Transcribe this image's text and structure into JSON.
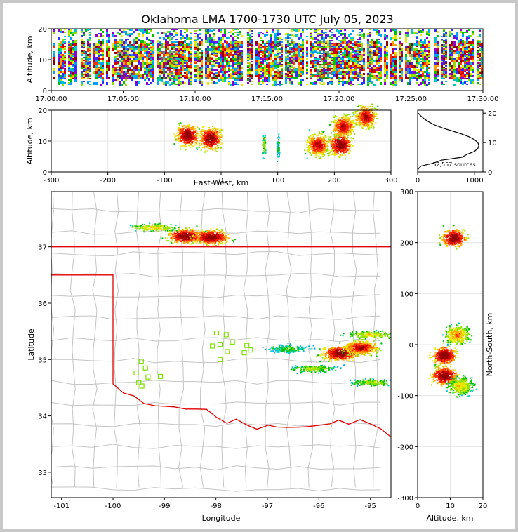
{
  "title": "Oklahoma LMA 1700-1730 UTC July 05, 2023",
  "source_count_label": "52,557 sources",
  "colors": {
    "background": "#ffffff",
    "frame": "#c8c8c8",
    "state_border": "#e00000",
    "county_lines": "#c4c4c4",
    "station": "#7fe000",
    "profile": "#000000"
  },
  "chart_data": [
    {
      "id": "time-height",
      "type": "heatmap",
      "xlabel": "",
      "ylabel": "Altitude, km",
      "x_ticks": [
        "17:00:00",
        "17:05:00",
        "17:10:00",
        "17:15:00",
        "17:20:00",
        "17:25:00",
        "17:30:00"
      ],
      "xlim": [
        "17:00:00",
        "17:30:00"
      ],
      "y_ticks": [
        0,
        10,
        20
      ],
      "ylim": [
        0,
        20
      ],
      "altitude_band_km": [
        2,
        20
      ],
      "core_altitude_km": [
        4,
        16
      ],
      "grid": false
    },
    {
      "id": "east-west-altitude",
      "type": "heatmap",
      "xlabel": "East-West, km",
      "ylabel": "Altitude, km",
      "x_ticks": [
        -300,
        -200,
        -100,
        0,
        100,
        200,
        300
      ],
      "xlim": [
        -300,
        300
      ],
      "y_ticks": [
        0,
        10,
        20
      ],
      "ylim": [
        0,
        20
      ],
      "grid": true,
      "clusters": [
        {
          "x": -60,
          "z": 12,
          "intensity": 1.0
        },
        {
          "x": -20,
          "z": 11,
          "intensity": 1.0
        },
        {
          "x": 75,
          "z": 9,
          "intensity": 0.5
        },
        {
          "x": 100,
          "z": 8,
          "intensity": 0.4
        },
        {
          "x": 170,
          "z": 9,
          "intensity": 0.9
        },
        {
          "x": 210,
          "z": 9,
          "intensity": 1.0
        },
        {
          "x": 215,
          "z": 15,
          "intensity": 0.9
        },
        {
          "x": 255,
          "z": 18,
          "intensity": 0.9
        }
      ]
    },
    {
      "id": "altitude-histogram",
      "type": "line",
      "xlabel": "",
      "ylabel": "",
      "x_ticks": [
        0,
        1000
      ],
      "xlim": [
        0,
        1150
      ],
      "y_ticks": [
        0,
        10,
        20
      ],
      "ylim": [
        0,
        21
      ],
      "series": [
        {
          "altitude_km": [
            0,
            1,
            2,
            3,
            4,
            5,
            6,
            7,
            8,
            9,
            10,
            11,
            12,
            13,
            14,
            15,
            16,
            17,
            18,
            19,
            20
          ],
          "sources": [
            0,
            10,
            60,
            280,
            420,
            780,
            870,
            1000,
            1060,
            1080,
            1060,
            1000,
            900,
            760,
            600,
            430,
            300,
            200,
            120,
            60,
            10
          ]
        }
      ]
    },
    {
      "id": "plan-view",
      "type": "scatter",
      "xlabel": "Longitude",
      "ylabel": "Latitude",
      "x_ticks": [
        -101,
        -100,
        -99,
        -98,
        -97,
        -96,
        -95
      ],
      "xlim": [
        -101.2,
        -94.6
      ],
      "y_ticks": [
        33,
        34,
        35,
        36,
        37
      ],
      "ylim": [
        32.55,
        37.98
      ],
      "stations": [
        {
          "lon": -99.45,
          "lat": 34.97
        },
        {
          "lon": -99.37,
          "lat": 34.85
        },
        {
          "lon": -99.55,
          "lat": 34.76
        },
        {
          "lon": -99.32,
          "lat": 34.69
        },
        {
          "lon": -99.08,
          "lat": 34.7
        },
        {
          "lon": -99.5,
          "lat": 34.59
        },
        {
          "lon": -99.44,
          "lat": 34.53
        },
        {
          "lon": -97.99,
          "lat": 35.47
        },
        {
          "lon": -97.8,
          "lat": 35.44
        },
        {
          "lon": -98.07,
          "lat": 35.24
        },
        {
          "lon": -97.92,
          "lat": 35.27
        },
        {
          "lon": -97.68,
          "lat": 35.31
        },
        {
          "lon": -97.78,
          "lat": 35.14
        },
        {
          "lon": -97.4,
          "lat": 35.25
        },
        {
          "lon": -97.45,
          "lat": 35.12
        },
        {
          "lon": -97.92,
          "lat": 35.0
        },
        {
          "lon": -97.33,
          "lat": 35.17
        }
      ],
      "clusters": [
        {
          "lon": -98.6,
          "lat": 37.2,
          "intensity": 1.0
        },
        {
          "lon": -98.1,
          "lat": 37.18,
          "intensity": 1.0
        },
        {
          "lon": -99.2,
          "lat": 37.35,
          "intensity": 0.6
        },
        {
          "lon": -95.6,
          "lat": 35.12,
          "intensity": 1.0
        },
        {
          "lon": -95.2,
          "lat": 35.22,
          "intensity": 0.9
        },
        {
          "lon": -95.0,
          "lat": 35.45,
          "intensity": 0.6
        },
        {
          "lon": -95.0,
          "lat": 34.6,
          "intensity": 0.5
        },
        {
          "lon": -96.6,
          "lat": 35.2,
          "intensity": 0.4
        },
        {
          "lon": -96.1,
          "lat": 34.85,
          "intensity": 0.5
        }
      ]
    },
    {
      "id": "north-south-altitude",
      "type": "heatmap",
      "xlabel": "Altitude, km",
      "ylabel": "North-South, km",
      "x_ticks": [
        0,
        10,
        20
      ],
      "xlim": [
        0,
        20
      ],
      "y_ticks": [
        -300,
        -200,
        -100,
        0,
        100,
        200,
        300
      ],
      "ylim": [
        -300,
        300
      ],
      "grid": true,
      "clusters": [
        {
          "y": 210,
          "z": 11,
          "intensity": 1.0
        },
        {
          "y": 20,
          "z": 12,
          "intensity": 0.7
        },
        {
          "y": -20,
          "z": 8,
          "intensity": 1.0
        },
        {
          "y": -60,
          "z": 8,
          "intensity": 1.0
        },
        {
          "y": -80,
          "z": 13,
          "intensity": 0.6
        }
      ]
    }
  ]
}
